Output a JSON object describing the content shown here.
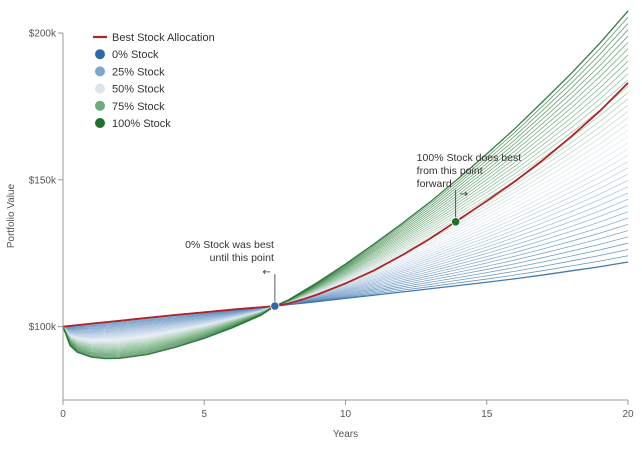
{
  "chart_data": {
    "type": "line",
    "xlabel": "Years",
    "ylabel": "Portfolio Value",
    "xlim": [
      0,
      20
    ],
    "ylim": [
      75,
      200
    ],
    "x_ticks": [
      0,
      5,
      10,
      15,
      20
    ],
    "x_tick_labels": [
      "0",
      "5",
      "10",
      "15",
      "20"
    ],
    "y_ticks": [
      100,
      150,
      200
    ],
    "y_tick_labels": [
      "$100k",
      "$150k",
      "$200k"
    ],
    "grid": false,
    "legend_position": "top-left",
    "legend": [
      {
        "label": "Best Stock Allocation",
        "kind": "line",
        "color": "#b22222"
      },
      {
        "label": "0% Stock",
        "kind": "dot",
        "color": "#2e6aa8"
      },
      {
        "label": "25% Stock",
        "kind": "dot",
        "color": "#7fa6cf"
      },
      {
        "label": "50% Stock",
        "kind": "dot",
        "color": "#dde6ef"
      },
      {
        "label": "75% Stock",
        "kind": "dot",
        "color": "#6fac7b"
      },
      {
        "label": "100% Stock",
        "kind": "dot",
        "color": "#1f6f2d"
      }
    ],
    "allocation_curves": {
      "x": [
        0,
        0.25,
        0.5,
        1,
        1.5,
        2,
        3,
        4,
        5,
        6,
        7,
        7.5,
        8,
        9,
        10,
        11,
        12,
        13,
        14,
        15,
        16,
        17,
        18,
        19,
        20
      ],
      "series": [
        {
          "stock_pct": 0,
          "color": "#2e6aa8",
          "values": [
            100,
            100.3,
            100.5,
            101,
            101.5,
            102,
            103,
            104,
            104.9,
            105.8,
            106.6,
            107,
            107.5,
            108.5,
            109.6,
            110.7,
            111.8,
            112.9,
            114,
            115.1,
            116.3,
            117.6,
            119,
            120.4,
            122
          ]
        },
        {
          "stock_pct": 100,
          "color": "#1f6f2d",
          "values": [
            100,
            93.5,
            91.3,
            89.6,
            89.1,
            89.2,
            90.5,
            93,
            96,
            99.6,
            103.8,
            107,
            109.2,
            115,
            121.3,
            128.1,
            135.1,
            142.5,
            150.5,
            158.8,
            167.5,
            176.8,
            186.3,
            196.5,
            207.5
          ]
        }
      ]
    },
    "best_allocation_series": {
      "name": "Best Stock Allocation",
      "color": "#b22222",
      "x": [
        0,
        1,
        2,
        3,
        4,
        5,
        6,
        7,
        7.5,
        8,
        8.5,
        9,
        10,
        11,
        12,
        13,
        13.9,
        15,
        16,
        17,
        18,
        19,
        20
      ],
      "values": [
        100,
        101,
        102,
        103,
        104,
        104.9,
        105.8,
        106.6,
        107,
        107.9,
        109.3,
        110.9,
        114.7,
        119.1,
        124.3,
        130,
        135.7,
        142.8,
        149.5,
        156.8,
        164.8,
        173.4,
        183
      ]
    },
    "markers": [
      {
        "x": 7.5,
        "y": 107,
        "color": "#2e6aa8"
      },
      {
        "x": 13.9,
        "y": 135.7,
        "color": "#1f6f2d"
      }
    ],
    "annotations": [
      {
        "lines": [
          "0% Stock was best",
          "until this point"
        ],
        "arrow": "←",
        "anchor_x": 7.5,
        "anchor_y": 107
      },
      {
        "lines": [
          "100% Stock does best",
          "from this point",
          "forward"
        ],
        "arrow": "→",
        "anchor_x": 13.9,
        "anchor_y": 135.7
      }
    ]
  }
}
